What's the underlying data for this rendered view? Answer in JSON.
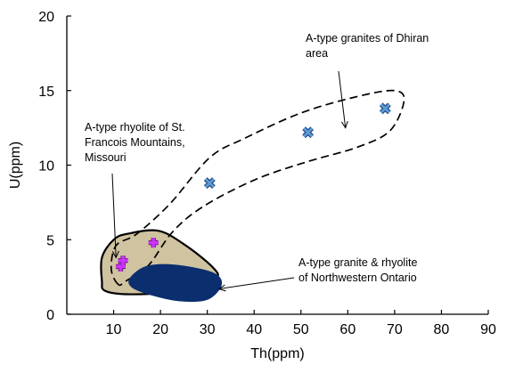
{
  "chart_data": {
    "type": "scatter",
    "xlabel": "Th(ppm)",
    "ylabel": "U(ppm)",
    "xlim": [
      0,
      90
    ],
    "ylim": [
      0,
      20
    ],
    "xticks": [
      10,
      20,
      30,
      40,
      50,
      60,
      70,
      80,
      90
    ],
    "yticks": [
      0,
      5,
      10,
      15,
      20
    ],
    "series": [
      {
        "marker": "x",
        "color": "#5b9bd5",
        "points": [
          [
            30.5,
            8.8
          ],
          [
            51.5,
            12.2
          ],
          [
            68,
            13.8
          ]
        ]
      },
      {
        "marker": "plus",
        "color": "#cc33ff",
        "points": [
          [
            11.5,
            3.2
          ],
          [
            12,
            3.6
          ],
          [
            18.5,
            4.8
          ]
        ]
      }
    ],
    "regions": [
      {
        "style": "dashed-outline",
        "outline": [
          [
            11,
            2.0
          ],
          [
            9.5,
            3.0
          ],
          [
            10.5,
            4.6
          ],
          [
            15,
            5.4
          ],
          [
            22,
            7.4
          ],
          [
            30.5,
            10.5
          ],
          [
            38,
            11.8
          ],
          [
            50,
            13.5
          ],
          [
            62,
            14.6
          ],
          [
            70,
            15
          ],
          [
            72,
            14.3
          ],
          [
            69,
            12.3
          ],
          [
            62,
            11.2
          ],
          [
            51,
            10.2
          ],
          [
            40,
            9.0
          ],
          [
            29,
            7.2
          ],
          [
            22.5,
            5.5
          ],
          [
            17.5,
            3.3
          ],
          [
            12.5,
            2.2
          ]
        ]
      },
      {
        "style": "filled-tan",
        "fill": "#cfc3a0",
        "outline": [
          [
            7.5,
            2.2
          ],
          [
            7.5,
            3.8
          ],
          [
            10,
            5.0
          ],
          [
            13,
            5.4
          ],
          [
            19.5,
            5.6
          ],
          [
            25,
            4.7
          ],
          [
            31,
            3.2
          ],
          [
            32,
            2.4
          ],
          [
            27,
            1.6
          ],
          [
            20,
            1.4
          ],
          [
            12,
            1.35
          ],
          [
            8,
            1.6
          ]
        ]
      },
      {
        "style": "filled-navy",
        "fill": "#0b2e6e",
        "outline": [
          [
            13.5,
            2.4
          ],
          [
            17,
            3.2
          ],
          [
            23,
            3.3
          ],
          [
            31,
            2.8
          ],
          [
            33,
            2.0
          ],
          [
            30,
            1.0
          ],
          [
            24,
            0.9
          ],
          [
            18,
            1.3
          ],
          [
            14,
            1.8
          ]
        ]
      }
    ],
    "annotations": [
      {
        "lines": [
          "A-type granites of Dhiran",
          "area"
        ],
        "arrow_to": [
          59.5,
          12.5
        ]
      },
      {
        "lines": [
          "A-type rhyolite of St.",
          "Francois Mountains,",
          "Missouri"
        ],
        "arrow_to": [
          10.5,
          3.8
        ]
      },
      {
        "lines": [
          "A-type granite & rhyolite",
          "of Northwestern Ontario"
        ],
        "arrow_to": [
          32.5,
          1.7
        ]
      }
    ]
  }
}
